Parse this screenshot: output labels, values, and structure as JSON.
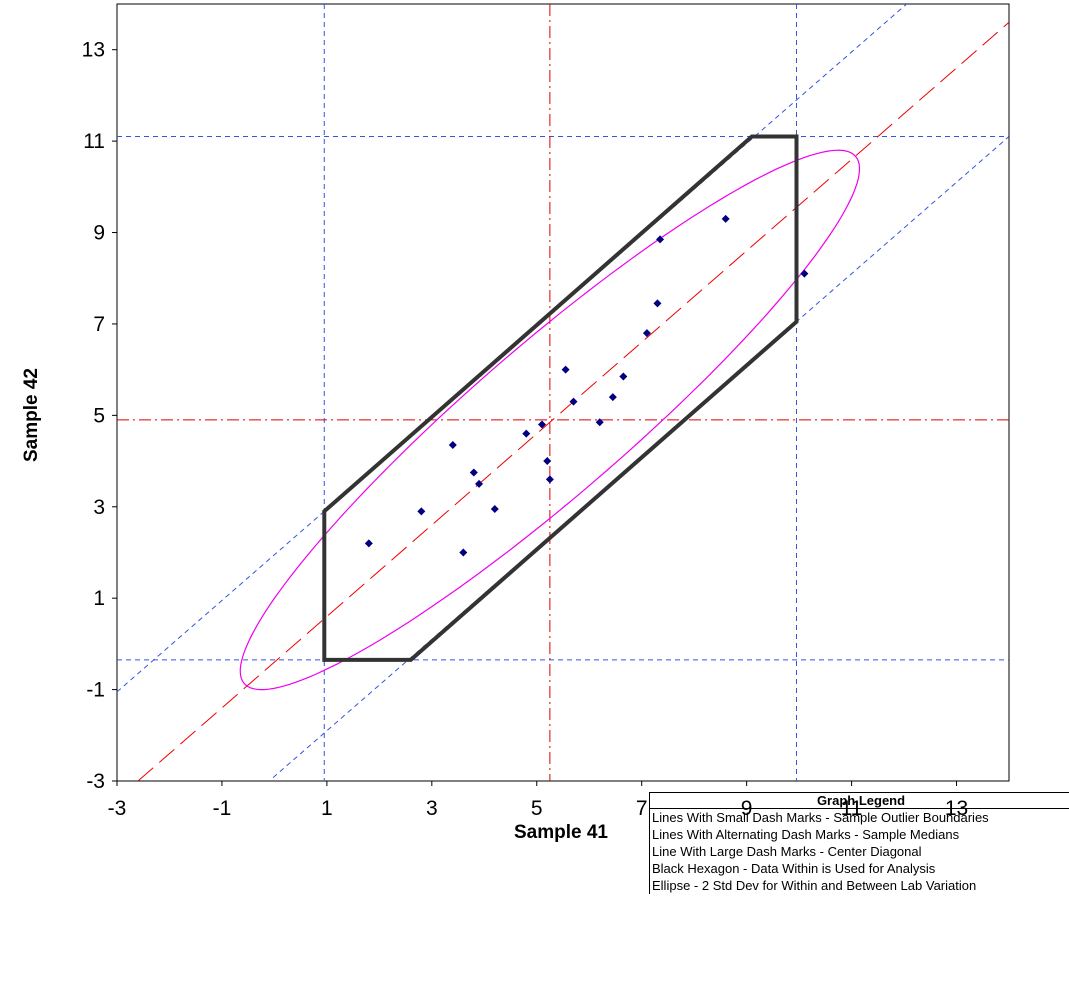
{
  "chart_data": {
    "type": "scatter",
    "xlabel": "Sample 41",
    "ylabel": "Sample 42",
    "xlim": [
      -3,
      14
    ],
    "ylim": [
      -3,
      14
    ],
    "xticks": [
      -3,
      -1,
      1,
      3,
      5,
      7,
      9,
      11,
      13
    ],
    "yticks": [
      -3,
      -1,
      1,
      3,
      5,
      7,
      9,
      11,
      13
    ],
    "grid": false,
    "points": [
      {
        "x": 1.8,
        "y": 2.2
      },
      {
        "x": 2.8,
        "y": 2.9
      },
      {
        "x": 3.4,
        "y": 4.35
      },
      {
        "x": 3.6,
        "y": 2.0
      },
      {
        "x": 3.8,
        "y": 3.75
      },
      {
        "x": 3.9,
        "y": 3.5
      },
      {
        "x": 4.2,
        "y": 2.95
      },
      {
        "x": 4.8,
        "y": 4.6
      },
      {
        "x": 5.1,
        "y": 4.8
      },
      {
        "x": 5.2,
        "y": 4.0
      },
      {
        "x": 5.25,
        "y": 3.6
      },
      {
        "x": 5.55,
        "y": 6.0
      },
      {
        "x": 5.7,
        "y": 5.3
      },
      {
        "x": 6.2,
        "y": 4.85
      },
      {
        "x": 6.45,
        "y": 5.4
      },
      {
        "x": 6.65,
        "y": 5.85
      },
      {
        "x": 7.1,
        "y": 6.8
      },
      {
        "x": 7.3,
        "y": 7.45
      },
      {
        "x": 7.35,
        "y": 8.85
      },
      {
        "x": 8.6,
        "y": 9.3
      },
      {
        "x": 10.1,
        "y": 8.1
      }
    ],
    "medians": {
      "x": 5.25,
      "y": 4.9
    },
    "outlier_bounds": {
      "x": [
        0.95,
        9.95
      ],
      "y": [
        -0.35,
        11.1
      ]
    },
    "center_diagonal": {
      "slope": 1,
      "intercept": -0.4
    },
    "boundary_diagonals": [
      {
        "slope": 1,
        "intercept": 1.95
      },
      {
        "slope": 1,
        "intercept": -2.9
      }
    ],
    "hexagon": [
      {
        "x": 0.95,
        "y": -0.35
      },
      {
        "x": 2.6,
        "y": -0.35
      },
      {
        "x": 9.95,
        "y": 7.05
      },
      {
        "x": 9.95,
        "y": 11.1
      },
      {
        "x": 9.1,
        "y": 11.1
      },
      {
        "x": 0.95,
        "y": 2.9
      }
    ],
    "ellipse": {
      "cx": 5.25,
      "cy": 4.9,
      "semi_major": 8.2,
      "semi_minor": 1.55,
      "angle_deg": 45
    },
    "colors": {
      "points": "#000080",
      "outlier_lines": "#3355dd",
      "median_lines": "#dd0000",
      "diagonal": "#ee0000",
      "hexagon": "#333333",
      "ellipse": "#ee00ee"
    }
  },
  "legend": {
    "title": "Graph Legend",
    "items": [
      "Lines With Small Dash Marks - Sample Outlier Boundaries",
      "Lines With Alternating Dash Marks - Sample Medians",
      "Line With Large Dash Marks - Center Diagonal",
      "Black Hexagon - Data Within is Used for Analysis",
      "Ellipse - 2 Std Dev for Within and Between Lab Variation"
    ]
  }
}
